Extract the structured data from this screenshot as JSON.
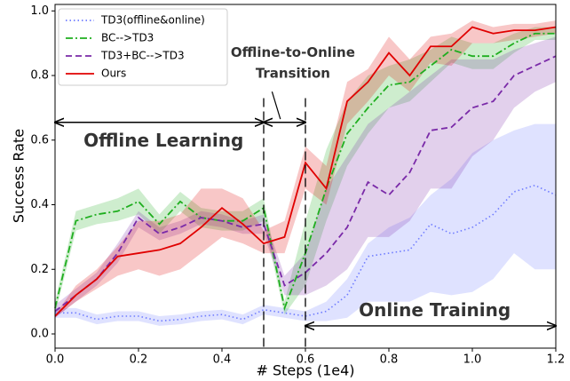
{
  "chart_data": {
    "type": "line",
    "xlabel": "# Steps (1e4)",
    "ylabel": "Success Rate",
    "x": [
      0,
      0.05,
      0.1,
      0.15,
      0.2,
      0.25,
      0.3,
      0.35,
      0.4,
      0.45,
      0.5,
      0.55,
      0.6,
      0.65,
      0.7,
      0.75,
      0.8,
      0.85,
      0.9,
      0.95,
      1.0,
      1.05,
      1.1,
      1.15,
      1.2
    ],
    "series": [
      {
        "name": "TD3(offline&online)",
        "color": "#6f7cff",
        "dash": "dotted",
        "values": [
          0.065,
          0.065,
          0.045,
          0.055,
          0.055,
          0.04,
          0.045,
          0.055,
          0.06,
          0.045,
          0.075,
          0.065,
          0.055,
          0.07,
          0.12,
          0.24,
          0.25,
          0.26,
          0.34,
          0.31,
          0.33,
          0.37,
          0.44,
          0.46,
          0.43
        ],
        "lower": [
          0.05,
          0.05,
          0.03,
          0.04,
          0.04,
          0.025,
          0.03,
          0.04,
          0.045,
          0.03,
          0.06,
          0.05,
          0.04,
          0.04,
          0.05,
          0.1,
          0.1,
          0.1,
          0.13,
          0.12,
          0.13,
          0.17,
          0.25,
          0.2,
          0.2
        ],
        "upper": [
          0.08,
          0.08,
          0.06,
          0.07,
          0.07,
          0.055,
          0.06,
          0.07,
          0.075,
          0.06,
          0.09,
          0.08,
          0.07,
          0.1,
          0.17,
          0.28,
          0.33,
          0.36,
          0.43,
          0.48,
          0.56,
          0.6,
          0.63,
          0.65,
          0.65
        ]
      },
      {
        "name": "BC-->TD3",
        "color": "#1fae1f",
        "dash": "dashdot",
        "values": [
          0.08,
          0.35,
          0.37,
          0.38,
          0.41,
          0.34,
          0.41,
          0.36,
          0.35,
          0.35,
          0.39,
          0.08,
          0.25,
          0.45,
          0.62,
          0.7,
          0.77,
          0.78,
          0.83,
          0.88,
          0.86,
          0.86,
          0.9,
          0.93,
          0.93
        ],
        "lower": [
          0.06,
          0.32,
          0.34,
          0.35,
          0.37,
          0.31,
          0.38,
          0.33,
          0.32,
          0.32,
          0.35,
          0.06,
          0.15,
          0.35,
          0.52,
          0.62,
          0.7,
          0.72,
          0.78,
          0.84,
          0.82,
          0.82,
          0.87,
          0.91,
          0.91
        ],
        "upper": [
          0.1,
          0.38,
          0.4,
          0.42,
          0.45,
          0.37,
          0.44,
          0.39,
          0.38,
          0.38,
          0.42,
          0.1,
          0.35,
          0.57,
          0.72,
          0.8,
          0.83,
          0.85,
          0.88,
          0.92,
          0.9,
          0.9,
          0.93,
          0.95,
          0.95
        ]
      },
      {
        "name": "TD3+BC-->TD3",
        "color": "#7a2aa8",
        "dash": "dashed",
        "values": [
          0.07,
          0.12,
          0.17,
          0.25,
          0.36,
          0.31,
          0.33,
          0.36,
          0.35,
          0.33,
          0.34,
          0.15,
          0.19,
          0.25,
          0.33,
          0.47,
          0.43,
          0.5,
          0.63,
          0.64,
          0.7,
          0.72,
          0.8,
          0.83,
          0.86
        ],
        "lower": [
          0.05,
          0.1,
          0.15,
          0.22,
          0.33,
          0.29,
          0.31,
          0.34,
          0.33,
          0.31,
          0.31,
          0.12,
          0.12,
          0.15,
          0.2,
          0.3,
          0.3,
          0.35,
          0.45,
          0.45,
          0.55,
          0.6,
          0.7,
          0.75,
          0.78
        ],
        "upper": [
          0.09,
          0.14,
          0.19,
          0.28,
          0.38,
          0.33,
          0.35,
          0.38,
          0.37,
          0.35,
          0.37,
          0.18,
          0.25,
          0.45,
          0.55,
          0.65,
          0.7,
          0.75,
          0.8,
          0.85,
          0.85,
          0.85,
          0.88,
          0.9,
          0.92
        ]
      },
      {
        "name": "Ours",
        "color": "#e00000",
        "dash": "solid",
        "values": [
          0.055,
          0.12,
          0.17,
          0.24,
          0.25,
          0.26,
          0.28,
          0.33,
          0.39,
          0.34,
          0.28,
          0.3,
          0.53,
          0.45,
          0.72,
          0.78,
          0.87,
          0.8,
          0.89,
          0.89,
          0.95,
          0.93,
          0.94,
          0.94,
          0.95
        ],
        "lower": [
          0.05,
          0.1,
          0.14,
          0.18,
          0.2,
          0.18,
          0.2,
          0.25,
          0.3,
          0.28,
          0.25,
          0.25,
          0.45,
          0.4,
          0.65,
          0.72,
          0.8,
          0.75,
          0.84,
          0.83,
          0.9,
          0.9,
          0.91,
          0.92,
          0.93
        ],
        "upper": [
          0.06,
          0.15,
          0.2,
          0.27,
          0.35,
          0.35,
          0.37,
          0.45,
          0.45,
          0.42,
          0.32,
          0.35,
          0.58,
          0.52,
          0.78,
          0.82,
          0.92,
          0.85,
          0.92,
          0.93,
          0.97,
          0.95,
          0.96,
          0.96,
          0.97
        ]
      }
    ],
    "xlim": [
      0,
      1.2
    ],
    "ylim": [
      -0.044,
      1.02
    ],
    "xticks": [
      {
        "value": 0,
        "label": "0.0"
      },
      0.2,
      0.4,
      0.6,
      0.8,
      {
        "value": 1,
        "label": "1.0"
      },
      1.2
    ],
    "yticks": [
      {
        "value": 0,
        "label": "0.0"
      },
      0.2,
      0.4,
      0.6,
      0.8,
      {
        "value": 1,
        "label": "1.0"
      }
    ],
    "vlines": [
      0.5,
      0.6
    ],
    "annotations": {
      "offline": "Offline Learning",
      "transition": [
        "Offline-to-Online",
        "Transition"
      ],
      "online": "Online Training"
    },
    "legend": "upper left",
    "grid": false
  }
}
